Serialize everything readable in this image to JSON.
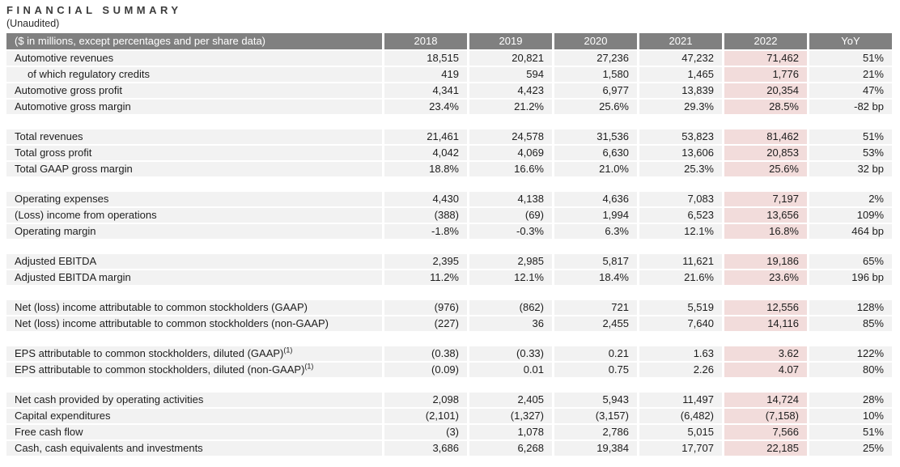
{
  "page": {
    "title": "FINANCIAL SUMMARY",
    "subtitle": "(Unaudited)"
  },
  "table": {
    "header": {
      "label": "($ in millions, except percentages and per share data)",
      "columns": [
        "2018",
        "2019",
        "2020",
        "2021",
        "2022",
        "YoY"
      ]
    },
    "colors": {
      "header_bg": "#808080",
      "header_text": "#ffffff",
      "row_bg": "#f2f2f2",
      "highlight_bg": "#f2dcdb",
      "text": "#1d1d1d"
    },
    "sections": [
      {
        "rows": [
          {
            "label": "Automotive revenues",
            "values": [
              "18,515",
              "20,821",
              "27,236",
              "47,232",
              "71,462"
            ],
            "yoy": "51%"
          },
          {
            "label": "of which regulatory credits",
            "values": [
              "419",
              "594",
              "1,580",
              "1,465",
              "1,776"
            ],
            "yoy": "21%"
          },
          {
            "label": "Automotive gross profit",
            "values": [
              "4,341",
              "4,423",
              "6,977",
              "13,839",
              "20,354"
            ],
            "yoy": "47%"
          },
          {
            "label": "Automotive gross margin",
            "values": [
              "23.4%",
              "21.2%",
              "25.6%",
              "29.3%",
              "28.5%"
            ],
            "yoy": "-82 bp"
          }
        ]
      },
      {
        "rows": [
          {
            "label": "Total revenues",
            "values": [
              "21,461",
              "24,578",
              "31,536",
              "53,823",
              "81,462"
            ],
            "yoy": "51%"
          },
          {
            "label": "Total gross profit",
            "values": [
              "4,042",
              "4,069",
              "6,630",
              "13,606",
              "20,853"
            ],
            "yoy": "53%"
          },
          {
            "label": "Total GAAP gross margin",
            "values": [
              "18.8%",
              "16.6%",
              "21.0%",
              "25.3%",
              "25.6%"
            ],
            "yoy": "32 bp"
          }
        ]
      },
      {
        "rows": [
          {
            "label": "Operating expenses",
            "values": [
              "4,430",
              "4,138",
              "4,636",
              "7,083",
              "7,197"
            ],
            "yoy": "2%"
          },
          {
            "label": "(Loss) income from operations",
            "values": [
              "(388)",
              "(69)",
              "1,994",
              "6,523",
              "13,656"
            ],
            "yoy": "109%"
          },
          {
            "label": "Operating margin",
            "values": [
              "-1.8%",
              "-0.3%",
              "6.3%",
              "12.1%",
              "16.8%"
            ],
            "yoy": "464 bp"
          }
        ]
      },
      {
        "rows": [
          {
            "label": "Adjusted EBITDA",
            "values": [
              "2,395",
              "2,985",
              "5,817",
              "11,621",
              "19,186"
            ],
            "yoy": "65%"
          },
          {
            "label": "Adjusted EBITDA margin",
            "values": [
              "11.2%",
              "12.1%",
              "18.4%",
              "21.6%",
              "23.6%"
            ],
            "yoy": "196 bp"
          }
        ]
      },
      {
        "rows": [
          {
            "label": "Net (loss) income attributable to common stockholders (GAAP)",
            "values": [
              "(976)",
              "(862)",
              "721",
              "5,519",
              "12,556"
            ],
            "yoy": "128%"
          },
          {
            "label": "Net (loss) income attributable to common stockholders (non-GAAP)",
            "values": [
              "(227)",
              "36",
              "2,455",
              "7,640",
              "14,116"
            ],
            "yoy": "85%"
          }
        ]
      },
      {
        "rows": [
          {
            "label": "EPS attributable to common stockholders, diluted (GAAP)",
            "sup": "(1)",
            "values": [
              "(0.38)",
              "(0.33)",
              "0.21",
              "1.63",
              "3.62"
            ],
            "yoy": "122%"
          },
          {
            "label": "EPS attributable to common stockholders, diluted (non-GAAP)",
            "sup": "(1)",
            "values": [
              "(0.09)",
              "0.01",
              "0.75",
              "2.26",
              "4.07"
            ],
            "yoy": "80%"
          }
        ]
      },
      {
        "rows": [
          {
            "label": "Net cash provided by operating activities",
            "values": [
              "2,098",
              "2,405",
              "5,943",
              "11,497",
              "14,724"
            ],
            "yoy": "28%"
          },
          {
            "label": "Capital expenditures",
            "values": [
              "(2,101)",
              "(1,327)",
              "(3,157)",
              "(6,482)",
              "(7,158)"
            ],
            "yoy": "10%"
          },
          {
            "label": "Free cash flow",
            "values": [
              "(3)",
              "1,078",
              "2,786",
              "5,015",
              "7,566"
            ],
            "yoy": "51%"
          },
          {
            "label": "Cash, cash equivalents and investments",
            "values": [
              "3,686",
              "6,268",
              "19,384",
              "17,707",
              "22,185"
            ],
            "yoy": "25%"
          }
        ]
      }
    ]
  }
}
